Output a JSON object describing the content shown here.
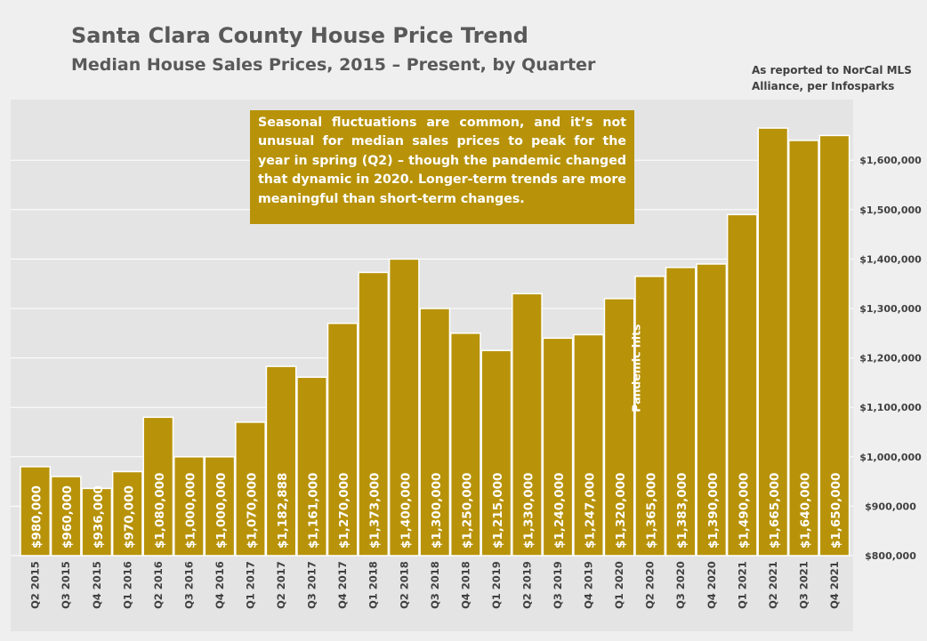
{
  "header": {
    "title": "Santa Clara County House Price Trend",
    "subtitle": "Median House Sales Prices, 2015 – Present, by Quarter",
    "source_lines": [
      "As reported to NorCal MLS",
      "Alliance, per Infosparks"
    ]
  },
  "note": "Seasonal fluctuations are common, and it’s not unusual for median sales prices to peak for the year in spring (Q2) – though the pandemic changed that dynamic in 2020. Longer-term trends are more meaningful than short-term changes.",
  "colors": {
    "bar": "#b8930a",
    "bar_border": "#ffffff",
    "note_bg": "#b8930a",
    "plot_bg": "#e4e4e4",
    "axis_text": "#404040",
    "title_text": "#595959"
  },
  "chart_data": {
    "type": "bar",
    "title": "Santa Clara County House Price Trend",
    "subtitle": "Median House Sales Prices, 2015 – Present, by Quarter",
    "xlabel": "",
    "ylabel": "",
    "ylim": [
      800000,
      1700000
    ],
    "y_axis_position": "right",
    "y_ticks": [
      800000,
      900000,
      1000000,
      1100000,
      1200000,
      1300000,
      1400000,
      1500000,
      1600000
    ],
    "y_tick_labels": [
      "$800,000",
      "$900,000",
      "$1,000,000",
      "$1,100,000",
      "$1,200,000",
      "$1,300,000",
      "$1,400,000",
      "$1,500,000",
      "$1,600,000"
    ],
    "grid": true,
    "legend": "none",
    "categories": [
      "Q2 2015",
      "Q3 2015",
      "Q4 2015",
      "Q1 2016",
      "Q2 2016",
      "Q3 2016",
      "Q4 2016",
      "Q1 2017",
      "Q2 2017",
      "Q3 2017",
      "Q4 2017",
      "Q1 2018",
      "Q2 2018",
      "Q3 2018",
      "Q4 2018",
      "Q1 2019",
      "Q2 2019",
      "Q3 2019",
      "Q4 2019",
      "Q1 2020",
      "Q2 2020",
      "Q3 2020",
      "Q4 2020",
      "Q1 2021",
      "Q2 2021",
      "Q3 2021",
      "Q4 2021"
    ],
    "values": [
      980000,
      960000,
      936000,
      970000,
      1080000,
      1000000,
      1000000,
      1070000,
      1182888,
      1161000,
      1270000,
      1373000,
      1400000,
      1300000,
      1250000,
      1215000,
      1330000,
      1240000,
      1247000,
      1320000,
      1365000,
      1383000,
      1390000,
      1490000,
      1665000,
      1640000,
      1650000
    ],
    "value_labels": [
      "$980,000",
      "$960,000",
      "$936,000",
      "$970,000",
      "$1,080,000",
      "$1,000,000",
      "$1,000,000",
      "$1,070,000",
      "$1,182,888",
      "$1,161,000",
      "$1,270,000",
      "$1,373,000",
      "$1,400,000",
      "$1,300,000",
      "$1,250,000",
      "$1,215,000",
      "$1,330,000",
      "$1,240,000",
      "$1,247,000",
      "$1,320,000",
      "$1,365,000",
      "$1,383,000",
      "$1,390,000",
      "$1,490,000",
      "$1,665,000",
      "$1,640,000",
      "$1,650,000"
    ],
    "annotations": [
      {
        "text": "Pandemic hits",
        "between": [
          "Q1 2020",
          "Q2 2020"
        ],
        "value": 1090000
      }
    ]
  }
}
